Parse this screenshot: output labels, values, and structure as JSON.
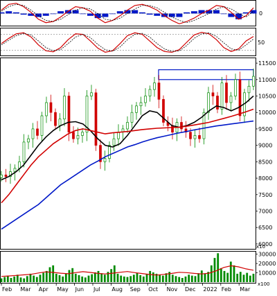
{
  "colors": {
    "ma_short": "#000000",
    "ma_mid": "#d10000",
    "ma_long": "#0018c8",
    "candle_up": "#008a00",
    "candle_down": "#d10000",
    "volume": "#008a00",
    "volume_ma": "#d10000",
    "histogram": "#0018c8",
    "highlight_box": "#0018c8",
    "grid": "#808080"
  },
  "chart_data": [
    {
      "type": "line",
      "panel": "macd",
      "y_tick_labels": [
        "0"
      ],
      "ylim": [
        -1,
        1
      ],
      "series": [
        {
          "values": [
            0.3,
            0.8,
            0.9,
            0.6,
            0.1,
            -0.5,
            -0.8,
            -0.7,
            -0.3,
            0.2,
            0.6,
            0.5,
            0.2,
            -0.4,
            -0.8,
            -0.6,
            -0.2,
            0.3,
            0.7,
            0.8,
            0.6,
            0.3,
            -0.2,
            -0.6,
            -0.9,
            -0.7,
            -0.4,
            0.0,
            0.3,
            0.7,
            0.6,
            0.1,
            -0.5,
            -0.2,
            0.5
          ]
        },
        {
          "values": [
            0.2,
            0.6,
            0.8,
            0.7,
            0.3,
            -0.2,
            -0.6,
            -0.7,
            -0.5,
            -0.1,
            0.3,
            0.5,
            0.4,
            0.0,
            -0.5,
            -0.6,
            -0.4,
            0.0,
            0.4,
            0.7,
            0.7,
            0.5,
            0.1,
            -0.3,
            -0.6,
            -0.8,
            -0.6,
            -0.3,
            0.0,
            0.4,
            0.6,
            0.4,
            0.0,
            -0.3,
            0.2
          ]
        },
        {
          "values": [
            0.1,
            0.2,
            0.1,
            -0.1,
            -0.2,
            -0.3,
            -0.2,
            0.0,
            0.2,
            0.3,
            0.3,
            0.0,
            -0.2,
            -0.4,
            -0.3,
            0.0,
            0.2,
            0.3,
            0.3,
            0.1,
            -0.1,
            -0.2,
            -0.3,
            -0.3,
            -0.3,
            0.1,
            0.2,
            0.3,
            0.3,
            0.3,
            0.0,
            -0.3,
            -0.5,
            0.1,
            0.3
          ]
        }
      ]
    },
    {
      "type": "line",
      "panel": "oscillator",
      "y_tick_labels": [
        "50"
      ],
      "ylim": [
        0,
        100
      ],
      "series": [
        {
          "values": [
            45,
            65,
            82,
            86,
            70,
            40,
            18,
            14,
            30,
            60,
            82,
            80,
            55,
            28,
            12,
            18,
            45,
            75,
            86,
            80,
            55,
            30,
            15,
            12,
            22,
            50,
            78,
            88,
            82,
            60,
            30,
            15,
            25,
            55,
            72
          ]
        },
        {
          "values": [
            40,
            58,
            75,
            84,
            78,
            55,
            30,
            18,
            22,
            45,
            70,
            80,
            68,
            42,
            22,
            16,
            32,
            60,
            80,
            84,
            70,
            45,
            25,
            15,
            17,
            38,
            65,
            82,
            86,
            72,
            48,
            25,
            20,
            40,
            62
          ]
        }
      ],
      "reference_lines": [
        80,
        20
      ]
    },
    {
      "type": "line",
      "panel": "price",
      "x_tick_labels": [
        "Feb",
        "Mar",
        "Apr",
        "May",
        "Jun",
        "Jul",
        "Aug",
        "Sep",
        "Oct",
        "Nov",
        "Dec",
        "2022",
        "Feb",
        "Mar"
      ],
      "y_tick_labels": [
        "11500",
        "11000",
        "10500",
        "10000",
        "9500",
        "9000",
        "8500",
        "8000",
        "7500",
        "7000",
        "6500",
        "6000"
      ],
      "ylim": [
        5850,
        11650
      ],
      "close": [
        8100,
        8050,
        8200,
        8300,
        8500,
        9100,
        9200,
        9500,
        9300,
        9900,
        10300,
        10000,
        9600,
        9800,
        10500,
        9400,
        9200,
        9300,
        9400,
        10500,
        10600,
        9000,
        8500,
        8600,
        9000,
        9200,
        9400,
        9500,
        9700,
        10000,
        10200,
        10300,
        10500,
        10700,
        10900,
        10400,
        9700,
        9600,
        9400,
        9700,
        9500,
        9400,
        9200,
        9300,
        9200,
        10000,
        10600,
        10500,
        10100,
        10900,
        10300,
        10500,
        11000,
        9900,
        10600,
        10800,
        11100
      ],
      "series": [
        {
          "values": [
            7950,
            8050,
            8200,
            8400,
            8700,
            9000,
            9250,
            9450,
            9600,
            9700,
            9720,
            9650,
            9450,
            9200,
            9000,
            8950,
            9050,
            9300,
            9600,
            9900,
            10050,
            10000,
            9800,
            9600,
            9550,
            9600,
            9700,
            9850,
            10050,
            10200,
            10150,
            10050,
            10150,
            10300,
            10500
          ]
        },
        {
          "values": [
            7250,
            7500,
            7800,
            8100,
            8400,
            8650,
            8850,
            9050,
            9200,
            9350,
            9450,
            9500,
            9450,
            9400,
            9350,
            9380,
            9400,
            9420,
            9450,
            9480,
            9500,
            9520,
            9530,
            9540,
            9550,
            9580,
            9620,
            9660,
            9700,
            9760,
            9820,
            9880,
            9950,
            10020,
            10100
          ]
        },
        {
          "values": [
            6450,
            6600,
            6750,
            6900,
            7050,
            7200,
            7400,
            7600,
            7800,
            7950,
            8100,
            8250,
            8400,
            8520,
            8650,
            8750,
            8850,
            8950,
            9020,
            9100,
            9170,
            9230,
            9280,
            9330,
            9380,
            9420,
            9470,
            9510,
            9550,
            9590,
            9620,
            9650,
            9680,
            9710,
            9740
          ]
        }
      ],
      "highlight_range": [
        11000,
        11300
      ]
    },
    {
      "type": "bar",
      "panel": "volume",
      "y_tick_labels": [
        "30000",
        "20000",
        "10000"
      ],
      "axis_note": "x100",
      "ylim": [
        0,
        32000
      ],
      "values": [
        4000,
        5500,
        7000,
        4500,
        6000,
        8000,
        5000,
        4000,
        6500,
        9000,
        7000,
        5500,
        8000,
        10000,
        12000,
        16000,
        18000,
        9000,
        7500,
        6000,
        9500,
        13000,
        15000,
        9000,
        7500,
        6000,
        5000,
        7000,
        8500,
        10500,
        12000,
        9500,
        8000,
        11000,
        14000,
        18000,
        9000,
        7000,
        6000,
        5500,
        6500,
        8000,
        10000,
        7500,
        6000,
        9000,
        12000,
        10500,
        9000,
        8000,
        7000,
        9500,
        11000,
        8000,
        6500,
        5500,
        4500,
        6000,
        8000,
        7000,
        6500,
        9500,
        12500,
        9000,
        11000,
        18000,
        26000,
        31000,
        15000,
        12000,
        10000,
        22000,
        18000,
        9000,
        11000,
        8000,
        10000,
        7000,
        9000
      ],
      "series": [
        {
          "values": [
            6200,
            6600,
            7200,
            7800,
            8400,
            9800,
            11000,
            10400,
            9600,
            9000,
            10200,
            11200,
            10400,
            9400,
            8800,
            9600,
            10600,
            11400,
            10200,
            9200,
            8200,
            7600,
            8400,
            9400,
            10600,
            10200,
            9400,
            8800,
            9600,
            12200,
            15800,
            17600,
            16400,
            14200,
            12800
          ]
        }
      ]
    }
  ]
}
